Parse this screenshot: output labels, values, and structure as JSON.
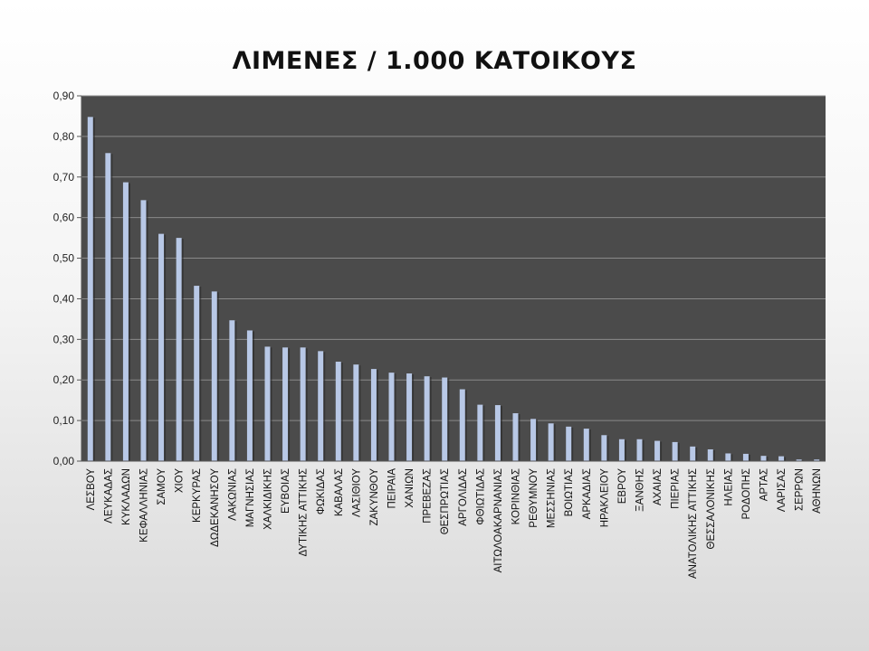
{
  "chart_data": {
    "type": "bar",
    "title": "ΛΙΜΕΝΕΣ / 1.000 ΚΑΤΟΙΚΟΥΣ",
    "xlabel": "",
    "ylabel": "",
    "ylim": [
      0,
      0.9
    ],
    "yticks": [
      "0,00",
      "0,10",
      "0,20",
      "0,30",
      "0,40",
      "0,50",
      "0,60",
      "0,70",
      "0,80",
      "0,90"
    ],
    "grid": true,
    "legend": "none",
    "plot_background": "#4b4b4b",
    "gridline_color": "#8a8a8a",
    "bar_color": "#b8c8e6",
    "categories": [
      "ΛΕΣΒΟΥ",
      "ΛΕΥΚΑΔΑΣ",
      "ΚΥΚΛΑΔΩΝ",
      "ΚΕΦΑΛΛΗΝΙΑΣ",
      "ΣΑΜΟΥ",
      "ΧΙΟΥ",
      "ΚΕΡΚΥΡΑΣ",
      "ΔΩΔΕΚΑΝΗΣΟΥ",
      "ΛΑΚΩΝΙΑΣ",
      "ΜΑΓΝΗΣΙΑΣ",
      "ΧΑΛΚΙΔΙΚΗΣ",
      "ΕΥΒΟΙΑΣ",
      "ΔΥΤΙΚΗΣ ΑΤΤΙΚΗΣ",
      "ΦΩΚΙΔΑΣ",
      "ΚΑΒΑΛΑΣ",
      "ΛΑΣΙΘΙΟΥ",
      "ΖΑΚΥΝΘΟΥ",
      "ΠΕΙΡΑΙΑ",
      "ΧΑΝΙΩΝ",
      "ΠΡΕΒΕΖΑΣ",
      "ΘΕΣΠΡΩΤΙΑΣ",
      "ΑΡΓΟΛΙΔΑΣ",
      "ΦΘΙΩΤΙΔΑΣ",
      "ΑΙΤΩΛΟΑΚΑΡΝΑΝΙΑΣ",
      "ΚΟΡΙΝΘΙΑΣ",
      "ΡΕΘΥΜΝΟΥ",
      "ΜΕΣΣΗΝΙΑΣ",
      "ΒΟΙΩΤΙΑΣ",
      "ΑΡΚΑΔΙΑΣ",
      "ΗΡΑΚΛΕΙΟΥ",
      "ΕΒΡΟΥ",
      "ΞΑΝΘΗΣ",
      "ΑΧΑΙΑΣ",
      "ΠΙΕΡΙΑΣ",
      "ΑΝΑΤΟΛΙΚΗΣ ΑΤΤΙΚΗΣ",
      "ΘΕΣΣΑΛΟΝΙΚΗΣ",
      "ΗΛΕΙΑΣ",
      "ΡΟΔΟΠΗΣ",
      "ΑΡΤΑΣ",
      "ΛΑΡΙΣΑΣ",
      "ΣΕΡΡΩΝ",
      "ΑΘΗΝΩΝ"
    ],
    "values": [
      0.848,
      0.759,
      0.687,
      0.643,
      0.56,
      0.55,
      0.432,
      0.418,
      0.347,
      0.322,
      0.282,
      0.28,
      0.28,
      0.271,
      0.245,
      0.238,
      0.227,
      0.218,
      0.216,
      0.209,
      0.206,
      0.177,
      0.139,
      0.138,
      0.118,
      0.104,
      0.093,
      0.085,
      0.08,
      0.064,
      0.054,
      0.054,
      0.05,
      0.047,
      0.036,
      0.029,
      0.019,
      0.018,
      0.013,
      0.012,
      0.004,
      0.004
    ]
  }
}
